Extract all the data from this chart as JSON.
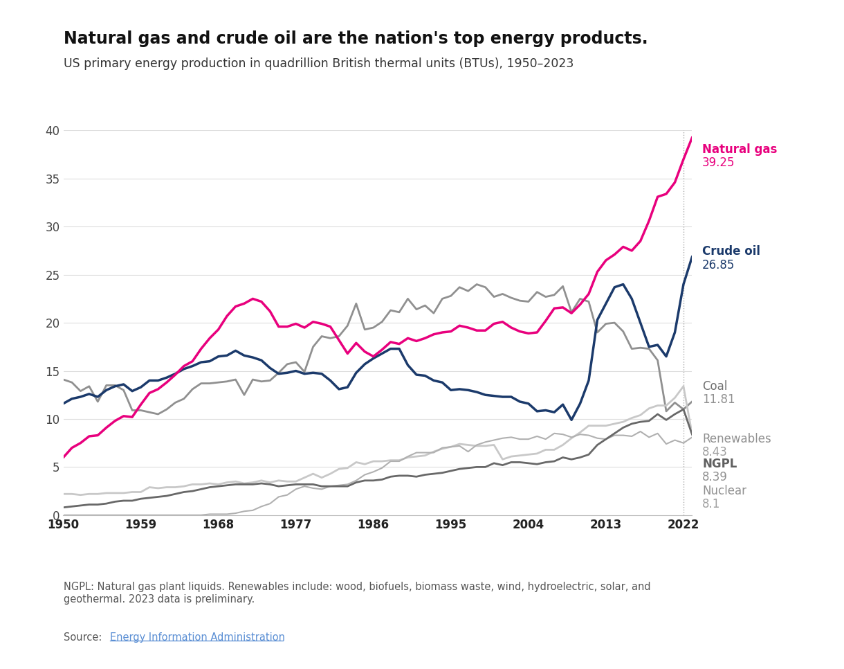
{
  "title": "Natural gas and crude oil are the nation's top energy products.",
  "subtitle": "US primary energy production in quadrillion British thermal units (BTUs), 1950–2023",
  "footnote": "NGPL: Natural gas plant liquids. Renewables include: wood, biofuels, biomass waste, wind, hydroelectric, solar, and\ngeothermal. 2023 data is preliminary.",
  "source_prefix": "Source: ",
  "source_link": "Energy Information Administration",
  "xlim": [
    1950,
    2023
  ],
  "ylim": [
    0,
    40
  ],
  "xticks": [
    1950,
    1959,
    1968,
    1977,
    1986,
    1995,
    2004,
    2013,
    2022
  ],
  "yticks": [
    0,
    5,
    10,
    15,
    20,
    25,
    30,
    35,
    40
  ],
  "years": [
    1950,
    1951,
    1952,
    1953,
    1954,
    1955,
    1956,
    1957,
    1958,
    1959,
    1960,
    1961,
    1962,
    1963,
    1964,
    1965,
    1966,
    1967,
    1968,
    1969,
    1970,
    1971,
    1972,
    1973,
    1974,
    1975,
    1976,
    1977,
    1978,
    1979,
    1980,
    1981,
    1982,
    1983,
    1984,
    1985,
    1986,
    1987,
    1988,
    1989,
    1990,
    1991,
    1992,
    1993,
    1994,
    1995,
    1996,
    1997,
    1998,
    1999,
    2000,
    2001,
    2002,
    2003,
    2004,
    2005,
    2006,
    2007,
    2008,
    2009,
    2010,
    2011,
    2012,
    2013,
    2014,
    2015,
    2016,
    2017,
    2018,
    2019,
    2020,
    2021,
    2022,
    2023
  ],
  "natural_gas": [
    6.0,
    7.0,
    7.5,
    8.2,
    8.3,
    9.1,
    9.8,
    10.3,
    10.2,
    11.5,
    12.7,
    13.1,
    13.8,
    14.6,
    15.5,
    16.0,
    17.3,
    18.4,
    19.3,
    20.7,
    21.7,
    22.0,
    22.5,
    22.2,
    21.2,
    19.6,
    19.6,
    19.9,
    19.5,
    20.1,
    19.9,
    19.6,
    18.2,
    16.8,
    17.9,
    17.0,
    16.5,
    17.2,
    18.0,
    17.8,
    18.4,
    18.1,
    18.4,
    18.8,
    19.0,
    19.1,
    19.7,
    19.5,
    19.2,
    19.2,
    19.9,
    20.1,
    19.5,
    19.1,
    18.9,
    19.0,
    20.2,
    21.5,
    21.6,
    21.0,
    21.9,
    23.0,
    25.3,
    26.5,
    27.1,
    27.9,
    27.5,
    28.5,
    30.6,
    33.1,
    33.4,
    34.6,
    37.0,
    39.25
  ],
  "crude_oil": [
    11.6,
    12.1,
    12.3,
    12.6,
    12.3,
    13.0,
    13.4,
    13.6,
    12.9,
    13.3,
    14.0,
    14.0,
    14.3,
    14.7,
    15.2,
    15.5,
    15.9,
    16.0,
    16.5,
    16.6,
    17.1,
    16.6,
    16.4,
    16.1,
    15.3,
    14.7,
    14.8,
    15.0,
    14.7,
    14.8,
    14.7,
    14.0,
    13.1,
    13.3,
    14.8,
    15.7,
    16.3,
    16.8,
    17.3,
    17.3,
    15.6,
    14.6,
    14.5,
    14.0,
    13.8,
    13.0,
    13.1,
    13.0,
    12.8,
    12.5,
    12.4,
    12.3,
    12.3,
    11.8,
    11.6,
    10.8,
    10.9,
    10.7,
    11.5,
    9.9,
    11.6,
    14.0,
    20.3,
    22.0,
    23.7,
    24.0,
    22.5,
    20.0,
    17.5,
    17.7,
    16.5,
    19.0,
    24.0,
    26.85
  ],
  "coal": [
    14.1,
    13.8,
    12.9,
    13.4,
    11.8,
    13.5,
    13.5,
    13.0,
    10.9,
    10.9,
    10.7,
    10.5,
    11.0,
    11.7,
    12.1,
    13.1,
    13.7,
    13.7,
    13.8,
    13.9,
    14.1,
    12.5,
    14.1,
    13.9,
    14.0,
    14.8,
    15.7,
    15.9,
    14.9,
    17.5,
    18.6,
    18.4,
    18.6,
    19.7,
    22.0,
    19.3,
    19.5,
    20.1,
    21.3,
    21.1,
    22.5,
    21.4,
    21.8,
    21.0,
    22.5,
    22.8,
    23.7,
    23.3,
    24.0,
    23.7,
    22.7,
    23.0,
    22.6,
    22.3,
    22.2,
    23.2,
    22.7,
    22.9,
    23.8,
    21.1,
    22.5,
    22.2,
    19.0,
    19.9,
    20.0,
    19.1,
    17.3,
    17.4,
    17.3,
    16.1,
    10.8,
    11.7,
    11.0,
    11.81
  ],
  "renewables": [
    2.2,
    2.2,
    2.1,
    2.2,
    2.2,
    2.3,
    2.3,
    2.3,
    2.4,
    2.4,
    2.9,
    2.8,
    2.9,
    2.9,
    3.0,
    3.2,
    3.2,
    3.3,
    3.2,
    3.4,
    3.5,
    3.3,
    3.4,
    3.6,
    3.4,
    3.6,
    3.5,
    3.5,
    3.9,
    4.3,
    3.9,
    4.3,
    4.8,
    4.9,
    5.5,
    5.3,
    5.6,
    5.6,
    5.7,
    5.7,
    6.0,
    6.1,
    6.2,
    6.6,
    6.9,
    7.1,
    7.4,
    7.3,
    7.2,
    7.2,
    7.3,
    5.8,
    6.1,
    6.2,
    6.3,
    6.4,
    6.8,
    6.8,
    7.3,
    8.0,
    8.6,
    9.3,
    9.3,
    9.3,
    9.5,
    9.7,
    10.1,
    10.4,
    11.1,
    11.4,
    11.4,
    12.2,
    13.4,
    8.43
  ],
  "ngpl": [
    0.8,
    0.9,
    1.0,
    1.1,
    1.1,
    1.2,
    1.4,
    1.5,
    1.5,
    1.7,
    1.8,
    1.9,
    2.0,
    2.2,
    2.4,
    2.5,
    2.7,
    2.9,
    3.0,
    3.1,
    3.2,
    3.2,
    3.2,
    3.3,
    3.2,
    3.0,
    3.1,
    3.2,
    3.2,
    3.2,
    3.0,
    3.0,
    3.0,
    3.0,
    3.4,
    3.6,
    3.6,
    3.7,
    4.0,
    4.1,
    4.1,
    4.0,
    4.2,
    4.3,
    4.4,
    4.6,
    4.8,
    4.9,
    5.0,
    5.0,
    5.4,
    5.2,
    5.5,
    5.5,
    5.4,
    5.3,
    5.5,
    5.6,
    6.0,
    5.8,
    6.0,
    6.3,
    7.3,
    7.9,
    8.5,
    9.1,
    9.5,
    9.7,
    9.8,
    10.5,
    9.9,
    10.5,
    11.0,
    8.39
  ],
  "nuclear": [
    0.0,
    0.0,
    0.0,
    0.0,
    0.0,
    0.0,
    0.0,
    0.0,
    0.0,
    0.0,
    0.0,
    0.0,
    0.0,
    0.0,
    0.0,
    0.0,
    0.0,
    0.1,
    0.1,
    0.1,
    0.2,
    0.4,
    0.5,
    0.9,
    1.2,
    1.9,
    2.1,
    2.7,
    3.0,
    2.8,
    2.7,
    3.0,
    3.1,
    3.2,
    3.6,
    4.2,
    4.5,
    4.9,
    5.6,
    5.6,
    6.1,
    6.5,
    6.5,
    6.5,
    7.0,
    7.1,
    7.2,
    6.6,
    7.3,
    7.6,
    7.8,
    8.0,
    8.1,
    7.9,
    7.9,
    8.2,
    7.9,
    8.5,
    8.4,
    8.1,
    8.4,
    8.3,
    8.0,
    7.9,
    8.3,
    8.3,
    8.2,
    8.7,
    8.1,
    8.5,
    7.4,
    7.8,
    7.5,
    8.1
  ],
  "series_colors": {
    "natural_gas": "#E8007D",
    "crude_oil": "#1B3A6B",
    "coal": "#909090",
    "renewables": "#C8C8C8",
    "ngpl": "#686868",
    "nuclear": "#B0B0B0"
  },
  "series_linewidths": {
    "natural_gas": 2.5,
    "crude_oil": 2.5,
    "coal": 2.0,
    "renewables": 2.0,
    "ngpl": 2.0,
    "nuclear": 1.5
  },
  "label_names": {
    "natural_gas": "Natural gas",
    "crude_oil": "Crude oil",
    "coal": "Coal",
    "renewables": "Renewables",
    "ngpl": "NGPL",
    "nuclear": "Nuclear"
  },
  "label_values": {
    "natural_gas": "39.25",
    "crude_oil": "26.85",
    "coal": "11.81",
    "renewables": "8.43",
    "ngpl": "8.39",
    "nuclear": "8.1"
  },
  "label_bold": {
    "natural_gas": true,
    "crude_oil": true,
    "coal": false,
    "renewables": false,
    "ngpl": true,
    "nuclear": false
  }
}
